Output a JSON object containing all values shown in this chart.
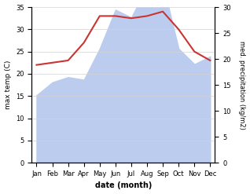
{
  "months": [
    "Jan",
    "Feb",
    "Mar",
    "Apr",
    "May",
    "Jun",
    "Jul",
    "Aug",
    "Sep",
    "Oct",
    "Nov",
    "Dec"
  ],
  "temp_max": [
    22,
    22.5,
    23,
    27,
    33,
    33,
    32.5,
    33,
    34,
    30,
    25,
    23
  ],
  "precipitation": [
    13,
    15.5,
    16.5,
    16,
    22,
    29.5,
    28,
    34,
    34.5,
    22,
    19,
    20.5
  ],
  "temp_color": "#cc3333",
  "precip_fill_color": "#bbccee",
  "temp_ylim": [
    0,
    35
  ],
  "precip_ylim": [
    0,
    30
  ],
  "temp_yticks": [
    0,
    5,
    10,
    15,
    20,
    25,
    30,
    35
  ],
  "precip_yticks": [
    0,
    5,
    10,
    15,
    20,
    25,
    30
  ],
  "ylabel_left": "max temp (C)",
  "ylabel_right": "med. precipitation (kg/m2)",
  "xlabel": "date (month)",
  "bg_color": "#ffffff"
}
